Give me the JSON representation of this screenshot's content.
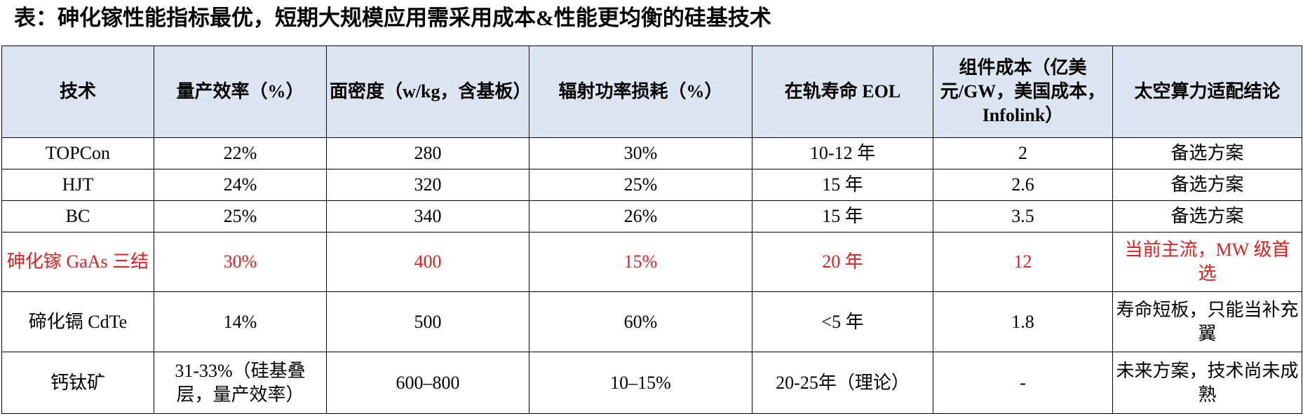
{
  "header": {
    "title": "表：砷化镓性能指标最优，短期大规模应用需采用成本&性能更均衡的硅基技术"
  },
  "table": {
    "columns": [
      "技术",
      "量产效率（%）",
      "面密度（w/kg，含基板）",
      "辐射功率损耗（%）",
      "在轨寿命 EOL",
      "组件成本（亿美元/GW，美国成本，Infolink）",
      "太空算力适配结论"
    ],
    "rows": [
      [
        "TOPCon",
        "22%",
        "280",
        "30%",
        "10-12 年",
        "2",
        "备选方案"
      ],
      [
        "HJT",
        "24%",
        "320",
        "25%",
        "15 年",
        "2.6",
        "备选方案"
      ],
      [
        "BC",
        "25%",
        "340",
        "26%",
        "15 年",
        "3.5",
        "备选方案"
      ],
      [
        "砷化镓 GaAs 三结",
        "30%",
        "400",
        "15%",
        "20 年",
        "12",
        "当前主流，MW 级首选"
      ],
      [
        "碲化镉 CdTe",
        "14%",
        "500",
        "60%",
        "<5 年",
        "1.8",
        "寿命短板，只能当补充翼"
      ],
      [
        "钙钛矿",
        "31-33%（硅基叠层，量产效率）",
        "600–800",
        "10–15%",
        "20-25年（理论）",
        "-",
        "未来方案，技术尚未成熟"
      ]
    ]
  }
}
